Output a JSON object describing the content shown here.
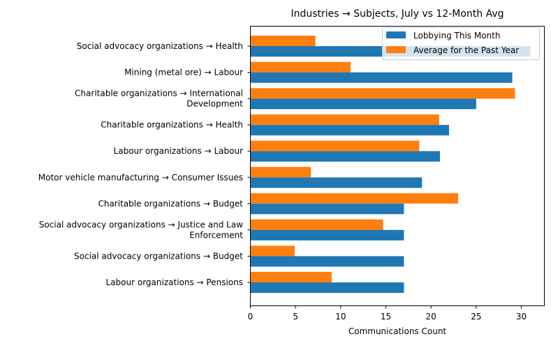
{
  "chart_data": {
    "type": "bar",
    "orientation": "horizontal",
    "title": "Industries → Subjects, July vs 12-Month Avg",
    "xlabel": "Communications Count",
    "ylabel": "",
    "xlim": [
      0,
      32.55
    ],
    "xticks": [
      0,
      5,
      10,
      15,
      20,
      25,
      30
    ],
    "grid": false,
    "legend_position": "top-right",
    "categories": [
      "Social advocacy organizations → Health",
      "Mining (metal ore) → Labour",
      "Charitable organizations → International\nDevelopment",
      "Charitable organizations → Health",
      "Labour organizations → Labour",
      "Motor vehicle manufacturing → Consumer Issues",
      "Charitable organizations → Budget",
      "Social advocacy organizations → Justice and Law\nEnforcement",
      "Social advocacy organizations → Budget",
      "Labour organizations → Pensions"
    ],
    "series": [
      {
        "name": "Lobbying This Month",
        "color": "#1f77b4",
        "values": [
          31,
          29,
          25,
          22,
          21,
          19,
          17,
          17,
          17,
          17
        ]
      },
      {
        "name": "Average for the Past Year",
        "color": "#ff7f0e",
        "values": [
          7.2,
          11.1,
          29.3,
          20.9,
          18.7,
          6.7,
          23.0,
          14.7,
          4.9,
          9.0
        ]
      }
    ]
  }
}
